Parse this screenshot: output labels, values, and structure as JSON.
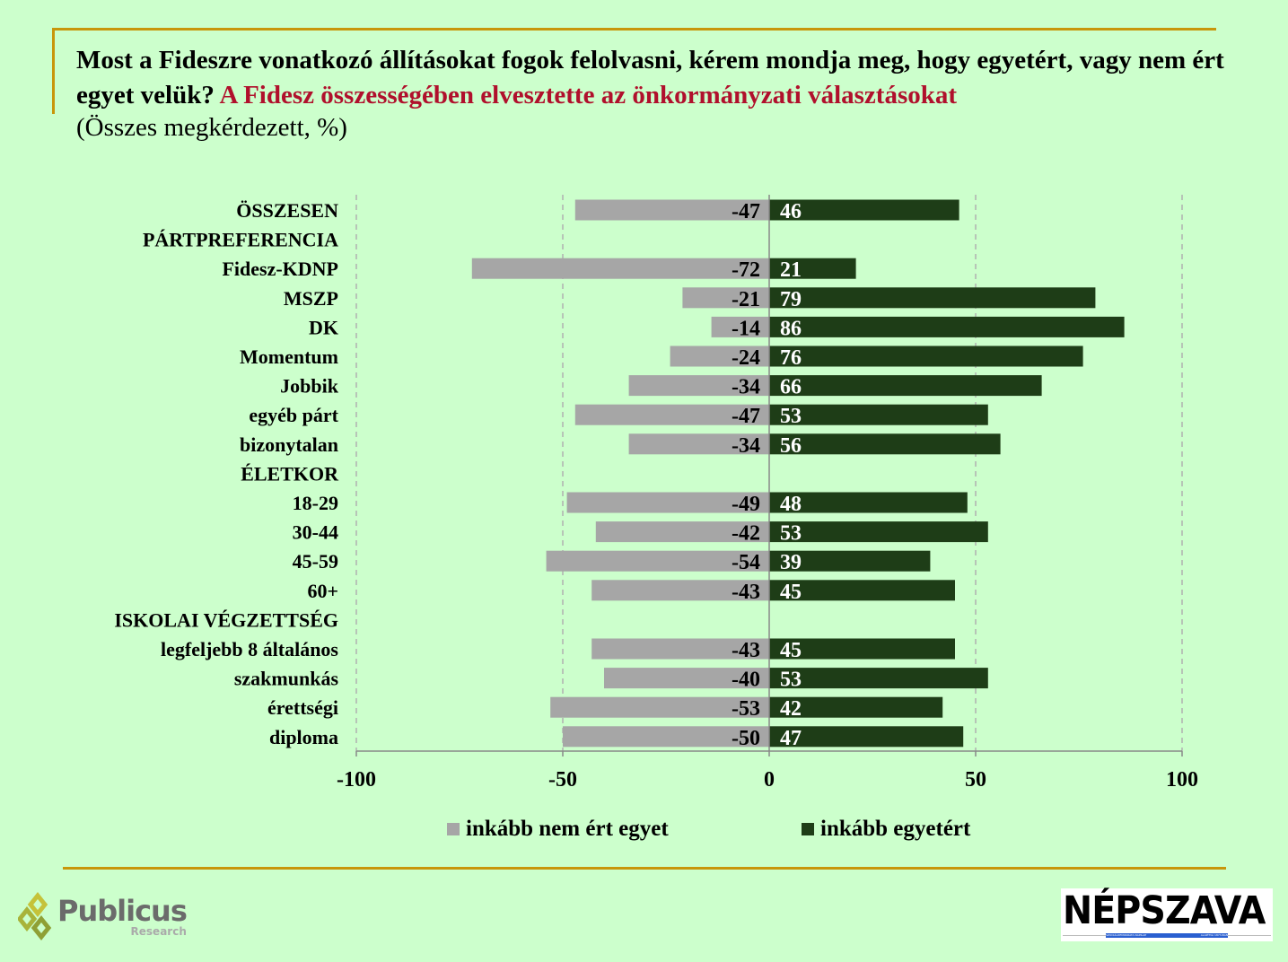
{
  "header": {
    "title_black": "Most a Fideszre vonatkozó állításokat fogok felolvasni, kérem mondja meg, hogy egyetért, vagy nem ért egyet velük?",
    "title_red": "A Fidesz összességében elvesztette az önkormányzati választásokat",
    "subtitle": "(Összes megkérdezett, %)"
  },
  "chart_data": {
    "type": "bar",
    "orientation": "horizontal-diverging",
    "categories": [
      "ÖSSZESEN",
      "PÁRTPREFERENCIA",
      "Fidesz-KDNP",
      "MSZP",
      "DK",
      "Momentum",
      "Jobbik",
      "egyéb párt",
      "bizonytalan",
      "ÉLETKOR",
      "18-29",
      "30-44",
      "45-59",
      "60+",
      "ISKOLAI VÉGZETTSÉG",
      "legfeljebb 8 általános",
      "szakmunkás",
      "érettségi",
      "diploma"
    ],
    "series": [
      {
        "name": "inkább nem ért egyet",
        "color": "#a6a6a6",
        "values": [
          -47,
          null,
          -72,
          -21,
          -14,
          -24,
          -34,
          -47,
          -34,
          null,
          -49,
          -42,
          -54,
          -43,
          null,
          -43,
          -40,
          -53,
          -50
        ]
      },
      {
        "name": "inkább egyetért",
        "color": "#1e3d17",
        "values": [
          46,
          null,
          21,
          79,
          86,
          76,
          66,
          53,
          56,
          null,
          48,
          53,
          39,
          45,
          null,
          45,
          53,
          42,
          47
        ]
      }
    ],
    "xlim": [
      -100,
      100
    ],
    "xticks": [
      -100,
      -50,
      0,
      50,
      100
    ],
    "grid": "vertical dashed",
    "legend": "bottom"
  },
  "logos": {
    "publicus": "Publicus",
    "publicus_sub": "Research",
    "nepszava": "NÉPSZAVA",
    "nepszava_left": "SZOCIÁLDEMOKRATA NAPILAP",
    "nepszava_right": "ALAPÍTVA 1873-BAN"
  }
}
